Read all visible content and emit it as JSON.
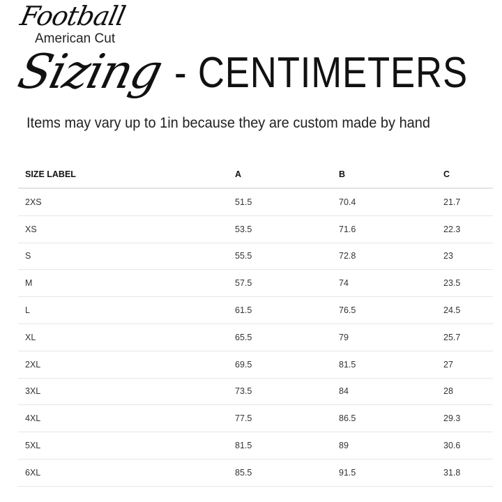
{
  "header": {
    "script_title": "Football",
    "subtitle_small": "American Cut",
    "script_word": "Sizing",
    "title_rest": "- CENTIMETERS",
    "note": "Items may vary up to 1in because they are custom made by hand"
  },
  "table": {
    "columns": [
      "SIZE LABEL",
      "A",
      "B",
      "C"
    ],
    "rows": [
      [
        "2XS",
        "51.5",
        "70.4",
        "21.7"
      ],
      [
        "XS",
        "53.5",
        "71.6",
        "22.3"
      ],
      [
        "S",
        "55.5",
        "72.8",
        "23"
      ],
      [
        "M",
        "57.5",
        "74",
        "23.5"
      ],
      [
        "L",
        "61.5",
        "76.5",
        "24.5"
      ],
      [
        "XL",
        "65.5",
        "79",
        "25.7"
      ],
      [
        "2XL",
        "69.5",
        "81.5",
        "27"
      ],
      [
        "3XL",
        "73.5",
        "84",
        "28"
      ],
      [
        "4XL",
        "77.5",
        "86.5",
        "29.3"
      ],
      [
        "5XL",
        "81.5",
        "89",
        "30.6"
      ],
      [
        "6XL",
        "85.5",
        "91.5",
        "31.8"
      ]
    ]
  }
}
